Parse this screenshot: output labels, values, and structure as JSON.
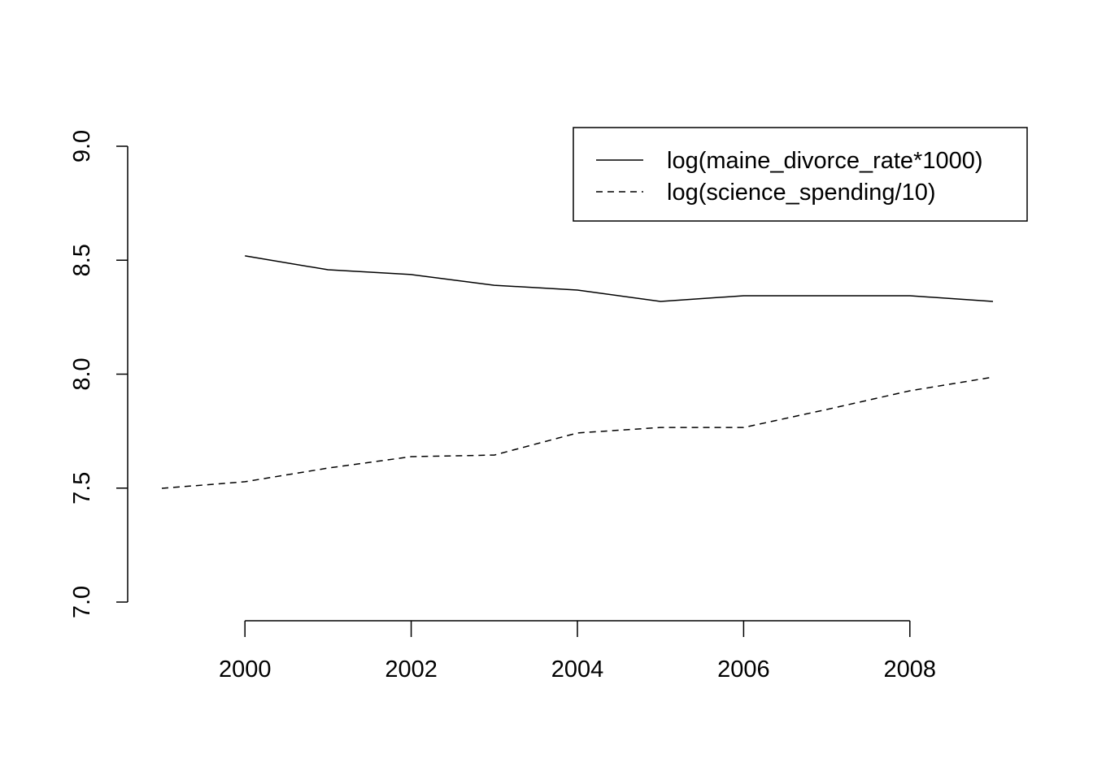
{
  "chart_data": {
    "type": "line",
    "title": "",
    "xlabel": "",
    "ylabel": "",
    "xlim": [
      1999,
      2009
    ],
    "ylim": [
      7.0,
      9.0
    ],
    "grid": false,
    "legend_position": "top-right",
    "x_ticks": [
      "2000",
      "2002",
      "2004",
      "2006",
      "2008"
    ],
    "y_ticks": [
      "7.0",
      "7.5",
      "8.0",
      "8.5",
      "9.0"
    ],
    "series": [
      {
        "name": "log(maine_divorce_rate*1000)",
        "style": "solid",
        "color": "#000000",
        "x": [
          2000,
          2001,
          2002,
          2003,
          2004,
          2005,
          2006,
          2007,
          2008,
          2009
        ],
        "y": [
          8.519,
          8.458,
          8.437,
          8.39,
          8.369,
          8.319,
          8.344,
          8.344,
          8.344,
          8.319
        ]
      },
      {
        "name": "log(science_spending/10)",
        "style": "dashed",
        "color": "#000000",
        "x": [
          1999,
          2000,
          2001,
          2002,
          2003,
          2004,
          2005,
          2006,
          2007,
          2008,
          2009
        ],
        "y": [
          7.499,
          7.528,
          7.588,
          7.638,
          7.645,
          7.742,
          7.766,
          7.766,
          7.845,
          7.927,
          7.987
        ]
      }
    ]
  }
}
